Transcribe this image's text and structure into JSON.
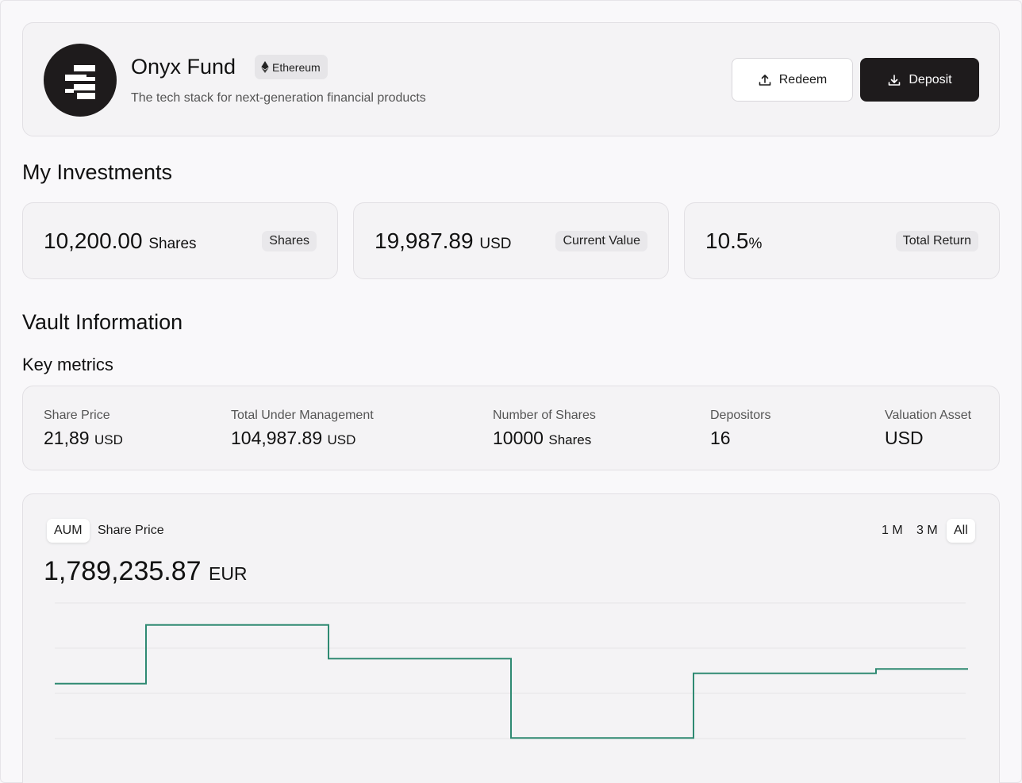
{
  "header": {
    "fund_name": "Onyx Fund",
    "chain_badge": "Ethereum",
    "description": "The tech stack for next-generation financial products",
    "redeem_label": "Redeem",
    "deposit_label": "Deposit"
  },
  "investments": {
    "title": "My Investments",
    "cards": [
      {
        "value": "10,200.00",
        "unit": "Shares",
        "tag": "Shares"
      },
      {
        "value": "19,987.89",
        "unit": "USD",
        "tag": "Current Value"
      },
      {
        "value": "10.5",
        "unit": "%",
        "tag": "Total Return"
      }
    ]
  },
  "vault": {
    "title": "Vault Information",
    "subtitle": "Key metrics",
    "metrics": [
      {
        "label": "Share Price",
        "value": "21,89",
        "unit": "USD"
      },
      {
        "label": "Total Under Management",
        "value": "104,987.89",
        "unit": "USD"
      },
      {
        "label": "Number of Shares",
        "value": "10000",
        "unit": "Shares"
      },
      {
        "label": "Depositors",
        "value": "16",
        "unit": ""
      },
      {
        "label": "Valuation Asset",
        "value": "USD",
        "unit": ""
      }
    ]
  },
  "chart_panel": {
    "tabs": [
      "AUM",
      "Share Price"
    ],
    "active_tab": "AUM",
    "ranges": [
      "1 M",
      "3 M",
      "All"
    ],
    "active_range": "All",
    "value": "1,789,235.87",
    "unit": "EUR"
  },
  "colors": {
    "line": "#2f8a72",
    "accent_dark": "#1e1b1c"
  },
  "chart_data": {
    "type": "line",
    "step": true,
    "x": [
      0,
      1,
      2,
      3,
      4,
      5
    ],
    "values": [
      0.45,
      0.85,
      0.62,
      0.08,
      0.52,
      0.55
    ],
    "ylim": [
      0,
      1
    ],
    "grid": true,
    "title": "",
    "xlabel": "",
    "ylabel": ""
  }
}
